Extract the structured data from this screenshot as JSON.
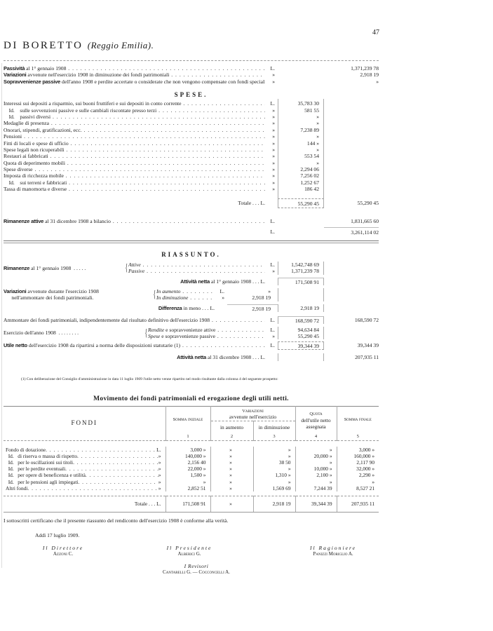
{
  "page": {
    "number": "47",
    "title": "DI BORETTO",
    "title_italic": "(Reggio Emilia)."
  },
  "summary_top": [
    {
      "bold": "Passività",
      "text": " al 1° gennaio 1908",
      "unit": "L.",
      "value": "1,371,239 78"
    },
    {
      "bold": "Variazioni",
      "text": " avvenute nell'esercizio 1908 in diminuzione dei fondi patrimoniali",
      "unit": "»",
      "value": "2,918 19"
    },
    {
      "bold": "Sopravvenienze passive",
      "text": " dell'anno 1908 e perdite accertate o considerate che non vengono compensate con fondi speciali",
      "unit": "»",
      "value": "»"
    }
  ],
  "spese": {
    "heading": "SPESE.",
    "rows": [
      {
        "text": "Interessi sui depositi a risparmio, sui buoni fruttiferi e sui depositi in conto corrente",
        "unit": "L.",
        "value": "35,783 30"
      },
      {
        "text": "    Id.    sulle sovvenzioni passive e sulle cambiali riscontate presso terzi",
        "unit": "»",
        "value": "581 55"
      },
      {
        "text": "    Id.    passivi diversi",
        "unit": "»",
        "value": "»"
      },
      {
        "text": "Medaglie di presenza",
        "unit": "»",
        "value": "»"
      },
      {
        "text": "Onorari, stipendi, gratificazioni, ecc.",
        "unit": "»",
        "value": "7,238 89"
      },
      {
        "text": "Pensioni",
        "unit": "»",
        "value": "»"
      },
      {
        "text": "Fitti di locali e spese di ufficio",
        "unit": "»",
        "value": "144  »"
      },
      {
        "text": "Spese legali non ricuperabili",
        "unit": "»",
        "value": "»"
      },
      {
        "text": "Restauri ai fabbricati",
        "unit": "»",
        "value": "553 54"
      },
      {
        "text": "Quota di deperimento mobili",
        "unit": "»",
        "value": "»"
      },
      {
        "text": "Spese diverse",
        "unit": "»",
        "value": "2,294 06"
      },
      {
        "text": "Imposta di ricchezza mobile",
        "unit": "»",
        "value": "7,256 02"
      },
      {
        "text": "    Id.    sui terreni e fabbricati",
        "unit": "»",
        "value": "1,252 67"
      },
      {
        "text": "Tassa di manomorta e diverse",
        "unit": "»",
        "value": "186 42"
      }
    ],
    "total_label": "Totale . . . L.",
    "total_col1": "55,290 45",
    "total_col2": "55,290 45"
  },
  "rimanenze_attive": {
    "bold": "Rimanenze attive",
    "text": " al 31 dicembre 1908 a bilancio",
    "unit": "L.",
    "value": "1,831,665 60"
  },
  "grand_total": {
    "unit": "L.",
    "value": "3,261,114 02"
  },
  "riassunto": {
    "heading": "RIASSUNTO.",
    "rimanenze": {
      "bold": "Rimanenze",
      "text": " al 1° gennaio 1908  . . . . .",
      "rows": [
        {
          "italic": "Attive",
          "unit": "L.",
          "value": "1,542,748 69"
        },
        {
          "italic": "Passive",
          "unit": "»",
          "value": "1,371,239 78"
        }
      ]
    },
    "attivita_inizio": {
      "bold": "Attività netta",
      "text": " al 1° gennaio 1908 . . . L.",
      "value": "171,508 91"
    },
    "variazioni": {
      "bold": "Variazioni",
      "text": " avvenute durante l'esercizio 1908",
      "text2": "      nell'ammontare dei fondi patrimoniali.",
      "rows": [
        {
          "italic": "In aumento",
          "unit": "L.",
          "inner": "»"
        },
        {
          "italic": "In diminuzione",
          "unit": "»",
          "inner": "2,918 19"
        }
      ]
    },
    "differenza": {
      "bold": "Differenza",
      "text": " in meno . . . L.",
      "inner": "2,918 19",
      "value": "2,918 19"
    },
    "ammontare": {
      "text": "Ammontare dei fondi patrimoniali, indipendentemente dal risultato definitivo dell'esercizio 1908",
      "unit": "L.",
      "col1": "168,590 72",
      "col2": "168,590 72"
    },
    "esercizio": {
      "text": "Esercizio dell'anno 1908  . . . . . . . .",
      "rows": [
        {
          "italic": "Rendite",
          "text": " e sopravvenienze attive",
          "unit": "L.",
          "value": "94,634 84"
        },
        {
          "italic": "Spese",
          "text": " e sopravvenienze passive",
          "unit": "»",
          "value": "55,290 45"
        }
      ]
    },
    "utile": {
      "bold": "Utile netto",
      "text": " dell'esercizio 1908 da ripartirsi a norma delle disposizioni statutarie (1)",
      "unit": "L.",
      "col1": "39,344 39",
      "col2": "39,344 39"
    },
    "attivita_fine": {
      "bold": "Attività netta",
      "text": " al 31 dicembre 1908 . . . L.",
      "value": "207,935 11"
    }
  },
  "footnote": "(1) Con deliberazione del Consiglio d'amministrazione in data 11 luglio 1909 l'utile netto venne ripartito nel modo risultante dalla colonna 4 del seguente prospetto:",
  "movimento": {
    "title": "Movimento dei fondi patrimoniali ed erogazione degli utili netti.",
    "headers": {
      "fondi": "FONDI",
      "somma_iniziale": "Somma iniziale",
      "variazioni": "Variazioni",
      "variazioni_sub": "avvenute nell'esercizio",
      "in_aumento": "in aumento",
      "in_diminuzione": "in diminuzione",
      "quota": "Quota",
      "quota_sub1": "dell'utile netto",
      "quota_sub2": "assegnata",
      "somma_finale": "Somma finale",
      "col_numbers": [
        "1",
        "2",
        "3",
        "4",
        "5"
      ]
    },
    "rows": [
      {
        "label": "Fondo di dotazione",
        "unit": "L.",
        "cells": [
          "3,000  »",
          "»",
          "»",
          "»",
          "3,000  »"
        ]
      },
      {
        "label": "  Id.   di riserva o massa di rispetto",
        "unit": "»",
        "cells": [
          "140,000  »",
          "»",
          "»",
          "20,000  »",
          "160,000  »"
        ]
      },
      {
        "label": "  Id.   per le oscillazioni sui titoli",
        "unit": "»",
        "cells": [
          "2,156 40",
          "»",
          "38 50",
          "»",
          "2,117 90"
        ]
      },
      {
        "label": "  Id.   per le perdite eventuali",
        "unit": "»",
        "cells": [
          "22,000  »",
          "»",
          "»",
          "10,000  »",
          "32,000  »"
        ]
      },
      {
        "label": "  Id.   per opere di beneficenza e utilità",
        "unit": "»",
        "cells": [
          "1,500  »",
          "»",
          "1,310  »",
          "2,100  »",
          "2,290  »"
        ]
      },
      {
        "label": "  Id.   per le pensioni agli impiegati",
        "unit": "»",
        "cells": [
          "»",
          "»",
          "»",
          "»",
          "»"
        ]
      },
      {
        "label": "Altri fondi",
        "unit": "»",
        "cells": [
          "2,852 51",
          "»",
          "1,569 69",
          "7,244 39",
          "8,527 21"
        ]
      }
    ],
    "total": {
      "label": "Totale . . . L.",
      "cells": [
        "171,508 91",
        "»",
        "2,918 19",
        "39,344 39",
        "207,935 11"
      ]
    }
  },
  "certification": "I sottoscritti certificano che il presente riassunto del rendiconto dell'esercizio 1908 è conforme alla verità.",
  "date_line": "Addì 17 luglio 1909.",
  "signatures": [
    {
      "role": "Il Direttore",
      "name": "Azzoni C."
    },
    {
      "role": "Il Presidente",
      "name": "Alberici G."
    },
    {
      "role": "Il Ragioniere",
      "name": "Panizzi Moriglio A."
    },
    {
      "role": "I Revisori",
      "name": "Cantarelli G. — Cocconcelli A."
    }
  ]
}
